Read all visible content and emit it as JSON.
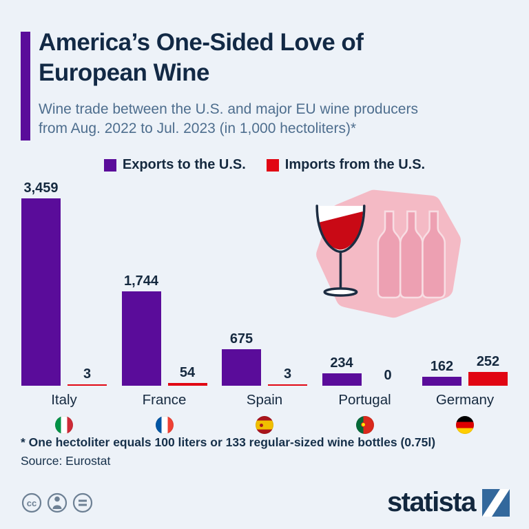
{
  "header": {
    "title_line1": "America’s One-Sided Love of",
    "title_line2": "European Wine",
    "subtitle_line1": "Wine trade between the U.S. and major EU wine producers",
    "subtitle_line2": "from Aug. 2022 to Jul. 2023 (in 1,000 hectoliters)*"
  },
  "legend": {
    "exports_label": "Exports to the U.S.",
    "imports_label": "Imports from the U.S."
  },
  "chart_data": {
    "type": "bar",
    "categories": [
      "Italy",
      "France",
      "Spain",
      "Portugal",
      "Germany"
    ],
    "series": [
      {
        "name": "Exports to the U.S.",
        "color": "#5a0c9a",
        "values": [
          3459,
          1744,
          675,
          234,
          162
        ]
      },
      {
        "name": "Imports from the U.S.",
        "color": "#e10613",
        "values": [
          3,
          54,
          3,
          0,
          252
        ]
      }
    ],
    "title": "America’s One-Sided Love of European Wine",
    "unit": "1,000 hectoliters",
    "period": "Aug. 2022 to Jul. 2023",
    "ylim": [
      0,
      3459
    ],
    "grid": false,
    "legend_position": "top",
    "value_labels_shown": true
  },
  "countries": [
    {
      "name": "Italy",
      "flag": "italy-flag-icon",
      "export_display": "3,459",
      "import_display": "3"
    },
    {
      "name": "France",
      "flag": "france-flag-icon",
      "export_display": "1,744",
      "import_display": "54"
    },
    {
      "name": "Spain",
      "flag": "spain-flag-icon",
      "export_display": "675",
      "import_display": "3"
    },
    {
      "name": "Portugal",
      "flag": "portugal-flag-icon",
      "export_display": "234",
      "import_display": "0"
    },
    {
      "name": "Germany",
      "flag": "germany-flag-icon",
      "export_display": "162",
      "import_display": "252"
    }
  ],
  "footer": {
    "footnote": "* One hectoliter equals 100 liters or 133 regular-sized wine bottles (0.75l)",
    "source": "Source: Eurostat",
    "brand": "statista"
  },
  "colors": {
    "background": "#edf2f8",
    "title_navy": "#122945",
    "subtitle_blue_gray": "#4e6e8e",
    "exports_purple": "#5a0c9a",
    "imports_red": "#e10613",
    "decoration_pink": "#f4bac5",
    "wine_red": "#c90915"
  }
}
